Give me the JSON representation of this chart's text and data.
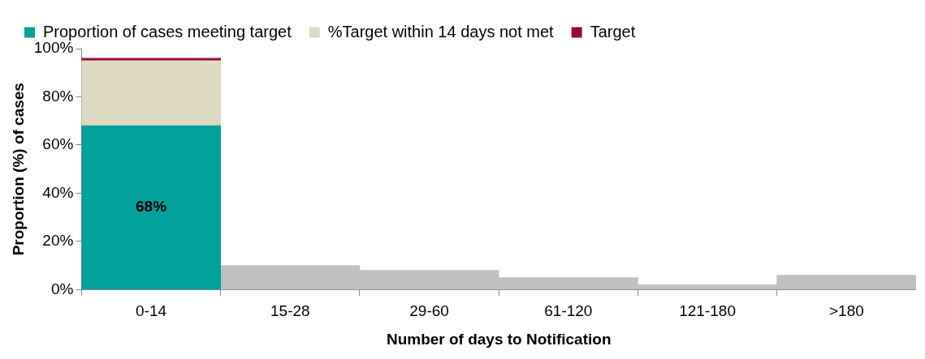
{
  "chart_data": {
    "type": "bar",
    "stacked": true,
    "xlabel": "Number of days to Notification",
    "ylabel": "Proportion (%) of cases",
    "categories": [
      "0-14",
      "15-28",
      "29-60",
      "61-120",
      "121-180",
      ">180"
    ],
    "series": [
      {
        "name": "Proportion of cases meeting target",
        "color": "#00a19a",
        "values": [
          68,
          null,
          null,
          null,
          null,
          null
        ],
        "value_labels": [
          "68%",
          null,
          null,
          null,
          null,
          null
        ]
      },
      {
        "name": "%Target within 14 days not met",
        "color": "#ddd9c3",
        "values": [
          27,
          null,
          null,
          null,
          null,
          null
        ]
      },
      {
        "name": "Target",
        "color": "#9b0a3c",
        "values": [
          1,
          null,
          null,
          null,
          null,
          null
        ]
      },
      {
        "color": "#c0c0c0",
        "values": [
          null,
          10,
          8,
          5,
          2,
          6
        ]
      }
    ],
    "ylim": [
      0,
      100
    ],
    "yticks": [
      {
        "value": 0,
        "label": "0%"
      },
      {
        "value": 20,
        "label": "20%"
      },
      {
        "value": 40,
        "label": "40%"
      },
      {
        "value": 60,
        "label": "60%"
      },
      {
        "value": 80,
        "label": "80%"
      },
      {
        "value": 100,
        "label": "100%"
      }
    ],
    "grid": false,
    "legend": "top left"
  }
}
